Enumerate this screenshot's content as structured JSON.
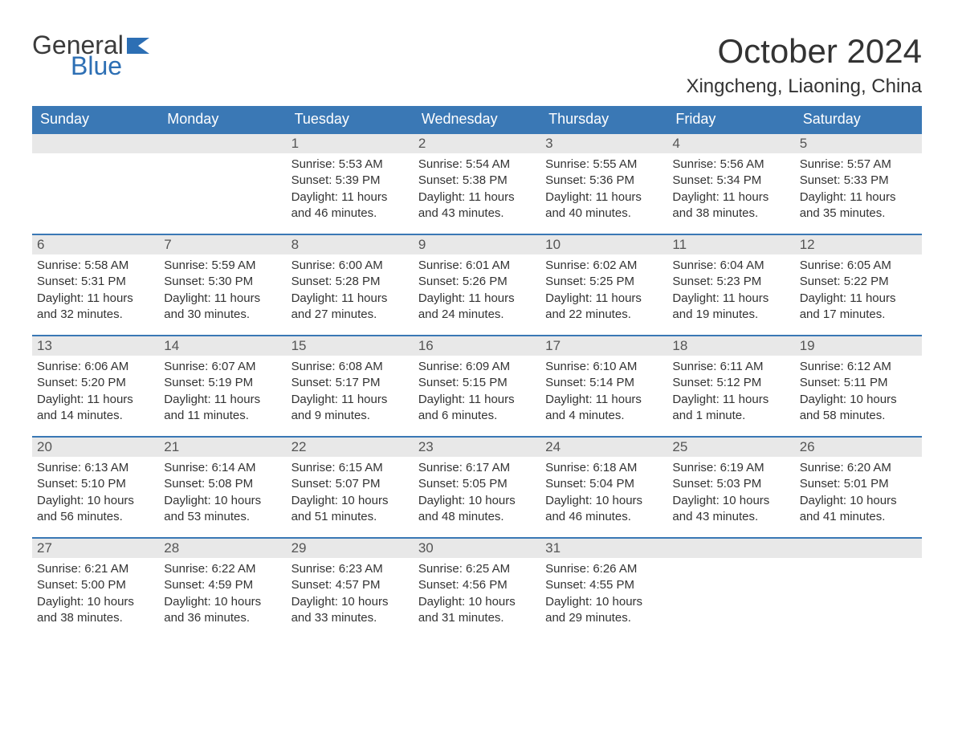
{
  "brand": {
    "word1": "General",
    "word2": "Blue",
    "word1_color": "#3b3b3b",
    "word2_color": "#2d6fb4",
    "flag_color": "#2d6fb4"
  },
  "title": "October 2024",
  "location": "Xingcheng, Liaoning, China",
  "colors": {
    "header_bg": "#3a78b5",
    "header_text": "#ffffff",
    "daynum_bg": "#e8e8e8",
    "text": "#333333",
    "week_border": "#3a78b5",
    "page_bg": "#ffffff"
  },
  "font": {
    "family": "Arial",
    "title_size": 42,
    "location_size": 24,
    "weekday_size": 18,
    "body_size": 15
  },
  "weekdays": [
    "Sunday",
    "Monday",
    "Tuesday",
    "Wednesday",
    "Thursday",
    "Friday",
    "Saturday"
  ],
  "labels": {
    "sunrise": "Sunrise:",
    "sunset": "Sunset:",
    "daylight": "Daylight:"
  },
  "leading_blanks": 2,
  "trailing_blanks": 2,
  "days": [
    {
      "n": 1,
      "sunrise": "5:53 AM",
      "sunset": "5:39 PM",
      "daylight": "11 hours and 46 minutes."
    },
    {
      "n": 2,
      "sunrise": "5:54 AM",
      "sunset": "5:38 PM",
      "daylight": "11 hours and 43 minutes."
    },
    {
      "n": 3,
      "sunrise": "5:55 AM",
      "sunset": "5:36 PM",
      "daylight": "11 hours and 40 minutes."
    },
    {
      "n": 4,
      "sunrise": "5:56 AM",
      "sunset": "5:34 PM",
      "daylight": "11 hours and 38 minutes."
    },
    {
      "n": 5,
      "sunrise": "5:57 AM",
      "sunset": "5:33 PM",
      "daylight": "11 hours and 35 minutes."
    },
    {
      "n": 6,
      "sunrise": "5:58 AM",
      "sunset": "5:31 PM",
      "daylight": "11 hours and 32 minutes."
    },
    {
      "n": 7,
      "sunrise": "5:59 AM",
      "sunset": "5:30 PM",
      "daylight": "11 hours and 30 minutes."
    },
    {
      "n": 8,
      "sunrise": "6:00 AM",
      "sunset": "5:28 PM",
      "daylight": "11 hours and 27 minutes."
    },
    {
      "n": 9,
      "sunrise": "6:01 AM",
      "sunset": "5:26 PM",
      "daylight": "11 hours and 24 minutes."
    },
    {
      "n": 10,
      "sunrise": "6:02 AM",
      "sunset": "5:25 PM",
      "daylight": "11 hours and 22 minutes."
    },
    {
      "n": 11,
      "sunrise": "6:04 AM",
      "sunset": "5:23 PM",
      "daylight": "11 hours and 19 minutes."
    },
    {
      "n": 12,
      "sunrise": "6:05 AM",
      "sunset": "5:22 PM",
      "daylight": "11 hours and 17 minutes."
    },
    {
      "n": 13,
      "sunrise": "6:06 AM",
      "sunset": "5:20 PM",
      "daylight": "11 hours and 14 minutes."
    },
    {
      "n": 14,
      "sunrise": "6:07 AM",
      "sunset": "5:19 PM",
      "daylight": "11 hours and 11 minutes."
    },
    {
      "n": 15,
      "sunrise": "6:08 AM",
      "sunset": "5:17 PM",
      "daylight": "11 hours and 9 minutes."
    },
    {
      "n": 16,
      "sunrise": "6:09 AM",
      "sunset": "5:15 PM",
      "daylight": "11 hours and 6 minutes."
    },
    {
      "n": 17,
      "sunrise": "6:10 AM",
      "sunset": "5:14 PM",
      "daylight": "11 hours and 4 minutes."
    },
    {
      "n": 18,
      "sunrise": "6:11 AM",
      "sunset": "5:12 PM",
      "daylight": "11 hours and 1 minute."
    },
    {
      "n": 19,
      "sunrise": "6:12 AM",
      "sunset": "5:11 PM",
      "daylight": "10 hours and 58 minutes."
    },
    {
      "n": 20,
      "sunrise": "6:13 AM",
      "sunset": "5:10 PM",
      "daylight": "10 hours and 56 minutes."
    },
    {
      "n": 21,
      "sunrise": "6:14 AM",
      "sunset": "5:08 PM",
      "daylight": "10 hours and 53 minutes."
    },
    {
      "n": 22,
      "sunrise": "6:15 AM",
      "sunset": "5:07 PM",
      "daylight": "10 hours and 51 minutes."
    },
    {
      "n": 23,
      "sunrise": "6:17 AM",
      "sunset": "5:05 PM",
      "daylight": "10 hours and 48 minutes."
    },
    {
      "n": 24,
      "sunrise": "6:18 AM",
      "sunset": "5:04 PM",
      "daylight": "10 hours and 46 minutes."
    },
    {
      "n": 25,
      "sunrise": "6:19 AM",
      "sunset": "5:03 PM",
      "daylight": "10 hours and 43 minutes."
    },
    {
      "n": 26,
      "sunrise": "6:20 AM",
      "sunset": "5:01 PM",
      "daylight": "10 hours and 41 minutes."
    },
    {
      "n": 27,
      "sunrise": "6:21 AM",
      "sunset": "5:00 PM",
      "daylight": "10 hours and 38 minutes."
    },
    {
      "n": 28,
      "sunrise": "6:22 AM",
      "sunset": "4:59 PM",
      "daylight": "10 hours and 36 minutes."
    },
    {
      "n": 29,
      "sunrise": "6:23 AM",
      "sunset": "4:57 PM",
      "daylight": "10 hours and 33 minutes."
    },
    {
      "n": 30,
      "sunrise": "6:25 AM",
      "sunset": "4:56 PM",
      "daylight": "10 hours and 31 minutes."
    },
    {
      "n": 31,
      "sunrise": "6:26 AM",
      "sunset": "4:55 PM",
      "daylight": "10 hours and 29 minutes."
    }
  ]
}
